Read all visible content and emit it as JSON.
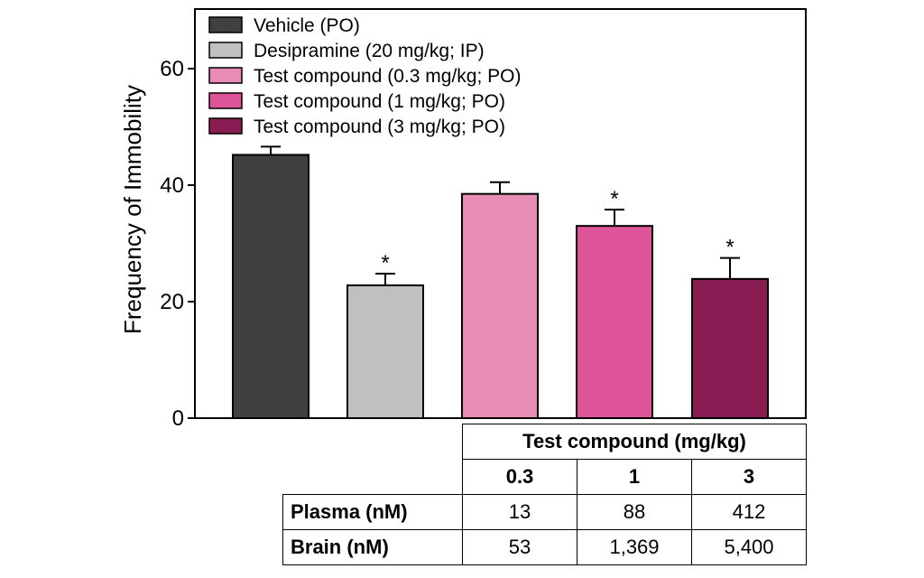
{
  "chart_data": {
    "type": "bar",
    "title": "",
    "xlabel": "",
    "ylabel": "Frequency of Immobility",
    "ylim": [
      0,
      70
    ],
    "yticks": [
      0,
      20,
      40,
      60
    ],
    "grid": false,
    "legend_position": "top-left",
    "categories": [
      "Vehicle (PO)",
      "Desipramine (20 mg/kg; IP)",
      "Test compound  (0.3 mg/kg; PO)",
      "Test compound  (1 mg/kg; PO)",
      "Test compound  (3 mg/kg; PO)"
    ],
    "values": [
      45.2,
      22.8,
      38.5,
      33.0,
      23.9
    ],
    "errors": [
      1.4,
      2.0,
      2.0,
      2.8,
      3.6
    ],
    "significance": [
      "",
      "*",
      "",
      "*",
      "*"
    ],
    "colors": [
      "#404040",
      "#c0c0c0",
      "#e78cb5",
      "#dd5498",
      "#8a1c54"
    ]
  },
  "table": {
    "header": "Test compound  (mg/kg)",
    "doses": [
      "0.3",
      "1",
      "3"
    ],
    "rows": [
      {
        "label": "Plasma (nM)",
        "values": [
          "13",
          "88",
          "412"
        ]
      },
      {
        "label": "Brain (nM)",
        "values": [
          "53",
          "1,369",
          "5,400"
        ]
      }
    ]
  }
}
